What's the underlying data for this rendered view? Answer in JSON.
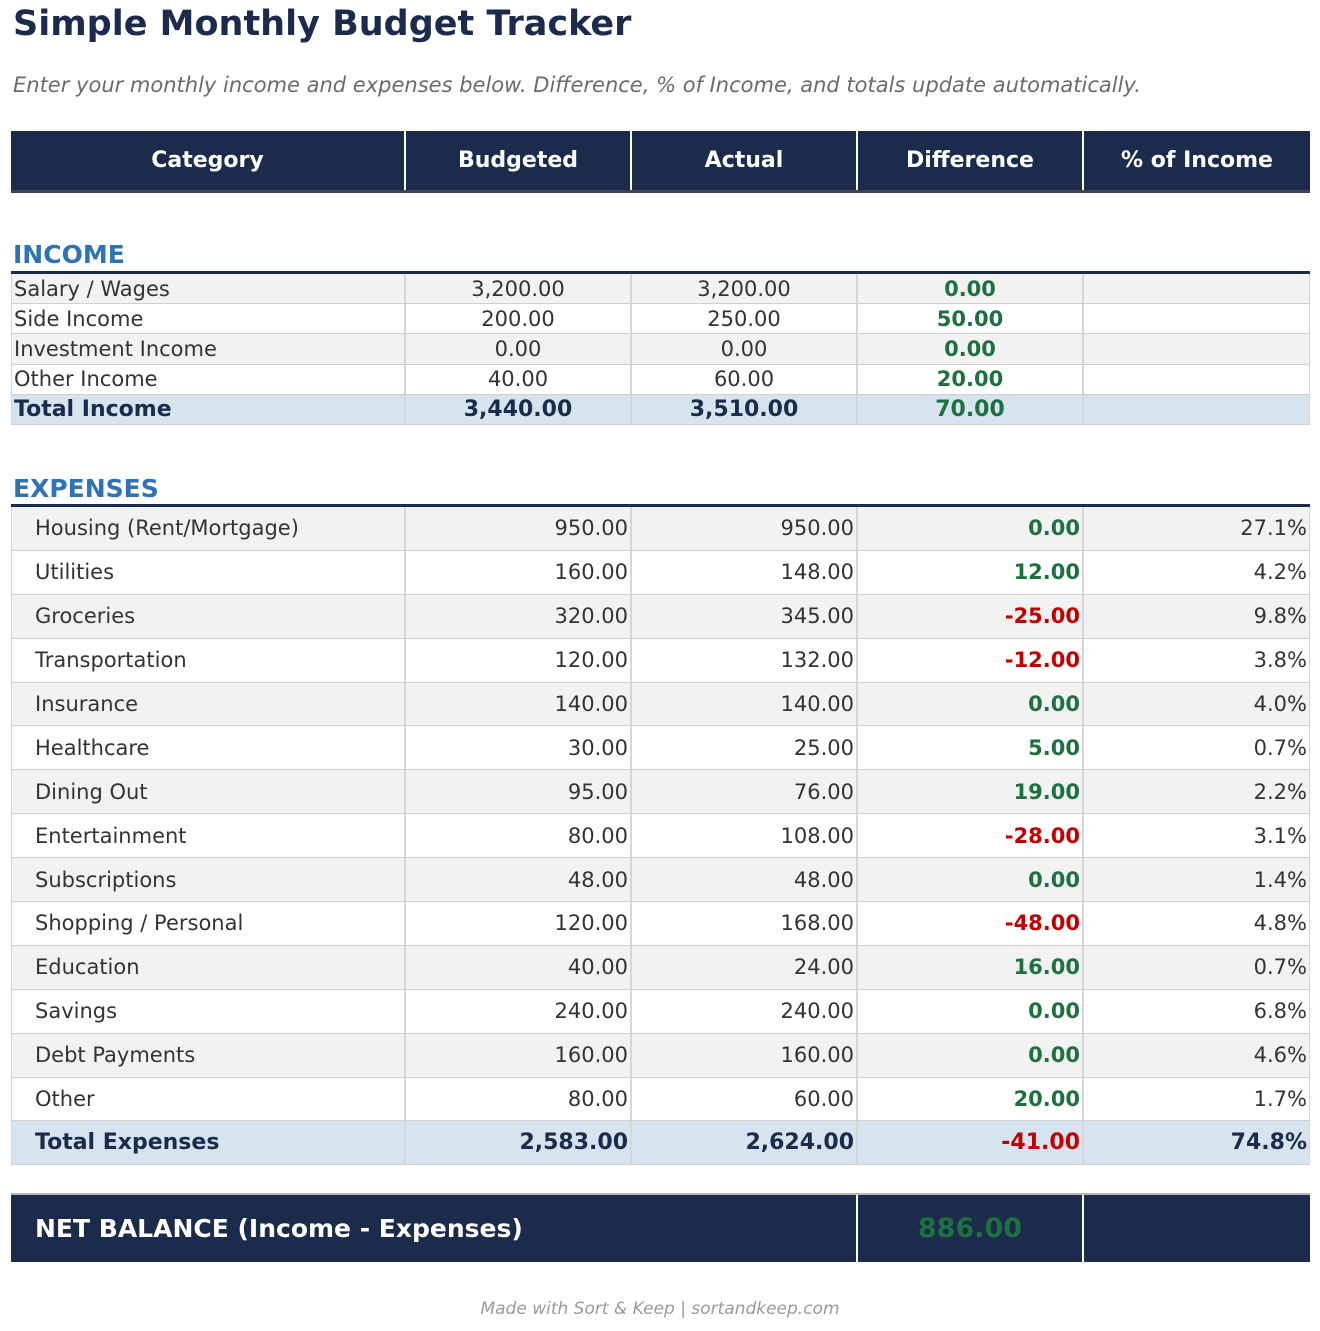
{
  "title": "Simple Monthly Budget Tracker",
  "subtitle": "Enter your monthly income and expenses below. Difference, % of Income, and totals update automatically.",
  "columns": [
    "Category",
    "Budgeted",
    "Actual",
    "Difference",
    "% of Income"
  ],
  "income": {
    "label": "INCOME",
    "rows": [
      {
        "category": "Salary / Wages",
        "budgeted": "3,200.00",
        "actual": "3,200.00",
        "difference": "0.00",
        "pct": ""
      },
      {
        "category": "Side Income",
        "budgeted": "200.00",
        "actual": "250.00",
        "difference": "50.00",
        "pct": ""
      },
      {
        "category": "Investment Income",
        "budgeted": "0.00",
        "actual": "0.00",
        "difference": "0.00",
        "pct": ""
      },
      {
        "category": "Other Income",
        "budgeted": "40.00",
        "actual": "60.00",
        "difference": "20.00",
        "pct": ""
      }
    ],
    "total": {
      "category": "Total Income",
      "budgeted": "3,440.00",
      "actual": "3,510.00",
      "difference": "70.00",
      "pct": ""
    }
  },
  "expenses": {
    "label": "EXPENSES",
    "rows": [
      {
        "category": "Housing (Rent/Mortgage)",
        "budgeted": "950.00",
        "actual": "950.00",
        "difference": "0.00",
        "pct": "27.1%"
      },
      {
        "category": "Utilities",
        "budgeted": "160.00",
        "actual": "148.00",
        "difference": "12.00",
        "pct": "4.2%"
      },
      {
        "category": "Groceries",
        "budgeted": "320.00",
        "actual": "345.00",
        "difference": "-25.00",
        "pct": "9.8%"
      },
      {
        "category": "Transportation",
        "budgeted": "120.00",
        "actual": "132.00",
        "difference": "-12.00",
        "pct": "3.8%"
      },
      {
        "category": "Insurance",
        "budgeted": "140.00",
        "actual": "140.00",
        "difference": "0.00",
        "pct": "4.0%"
      },
      {
        "category": "Healthcare",
        "budgeted": "30.00",
        "actual": "25.00",
        "difference": "5.00",
        "pct": "0.7%"
      },
      {
        "category": "Dining Out",
        "budgeted": "95.00",
        "actual": "76.00",
        "difference": "19.00",
        "pct": "2.2%"
      },
      {
        "category": "Entertainment",
        "budgeted": "80.00",
        "actual": "108.00",
        "difference": "-28.00",
        "pct": "3.1%"
      },
      {
        "category": "Subscriptions",
        "budgeted": "48.00",
        "actual": "48.00",
        "difference": "0.00",
        "pct": "1.4%"
      },
      {
        "category": "Shopping / Personal",
        "budgeted": "120.00",
        "actual": "168.00",
        "difference": "-48.00",
        "pct": "4.8%"
      },
      {
        "category": "Education",
        "budgeted": "40.00",
        "actual": "24.00",
        "difference": "16.00",
        "pct": "0.7%"
      },
      {
        "category": "Savings",
        "budgeted": "240.00",
        "actual": "240.00",
        "difference": "0.00",
        "pct": "6.8%"
      },
      {
        "category": "Debt Payments",
        "budgeted": "160.00",
        "actual": "160.00",
        "difference": "0.00",
        "pct": "4.6%"
      },
      {
        "category": "Other",
        "budgeted": "80.00",
        "actual": "60.00",
        "difference": "20.00",
        "pct": "1.7%"
      }
    ],
    "total": {
      "category": "Total Expenses",
      "budgeted": "2,583.00",
      "actual": "2,624.00",
      "difference": "-41.00",
      "pct": "74.8%"
    }
  },
  "net_balance": {
    "label": "NET BALANCE  (Income - Expenses)",
    "value": "886.00"
  },
  "footer": "Made with Sort & Keep  |  sortandkeep.com",
  "colors": {
    "header_navy": "#1c2a4b",
    "section_blue": "#2e74b5",
    "positive_green": "#1e7040",
    "negative_red": "#c00000",
    "total_row_bg": "#d6e4f0"
  }
}
